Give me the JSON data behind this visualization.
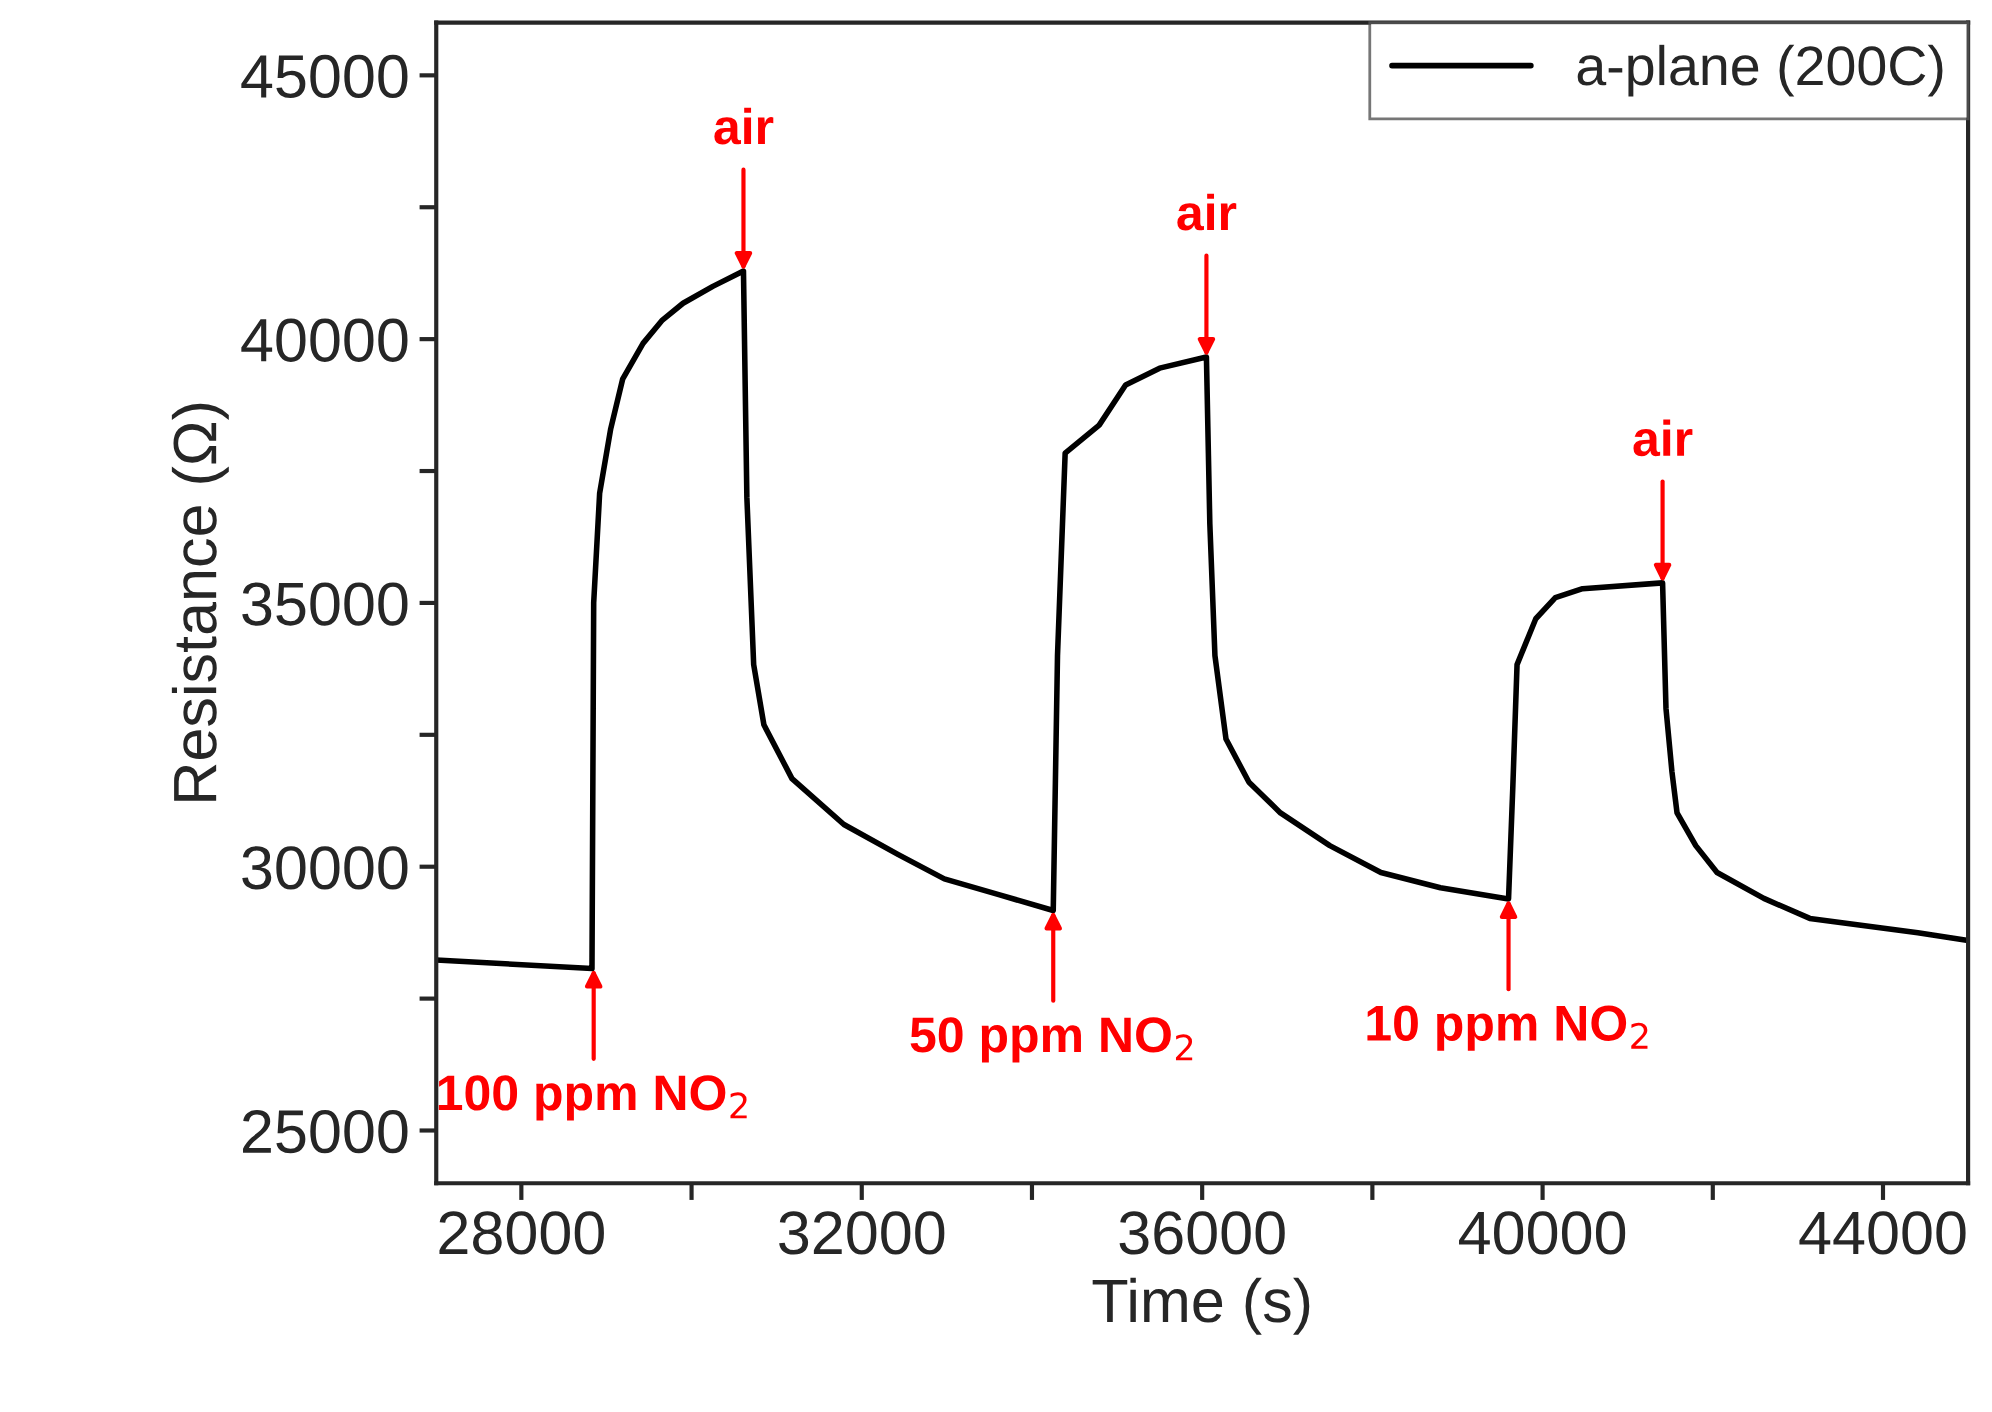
{
  "chart_data": {
    "type": "line",
    "xlabel": "Time (s)",
    "ylabel": "Resistance (Ω)",
    "xlim": [
      27000,
      45000
    ],
    "xticks": [
      28000,
      {
        "value": 30000,
        "label": null
      },
      32000,
      {
        "value": 34000,
        "label": null
      },
      36000,
      {
        "value": 38000,
        "label": null
      },
      40000,
      {
        "value": 42000,
        "label": null
      },
      44000
    ],
    "ylim": [
      24000,
      46000
    ],
    "yticks": [
      25000,
      {
        "value": 27500,
        "label": null
      },
      30000,
      {
        "value": 32500,
        "label": null
      },
      35000,
      {
        "value": 37500,
        "label": null
      },
      40000,
      {
        "value": 42500,
        "label": null
      },
      45000
    ],
    "series": [
      {
        "name": "a-plane (200C)",
        "color": "#000000",
        "x": [
          27000,
          28830,
          28850,
          28920,
          29050,
          29190,
          29430,
          29650,
          29900,
          30250,
          30610,
          30650,
          30730,
          30850,
          31180,
          31790,
          32430,
          32970,
          33610,
          34250,
          34300,
          34390,
          34790,
          35100,
          35500,
          36050,
          36090,
          36150,
          36280,
          36550,
          36920,
          37500,
          38100,
          38800,
          39600,
          39650,
          39700,
          39920,
          40150,
          40470,
          41410,
          41450,
          41520,
          41580,
          41800,
          42050,
          42600,
          43140,
          44410,
          45000
        ],
        "values": [
          28230,
          28070,
          35000,
          37080,
          38300,
          39240,
          39920,
          40350,
          40680,
          41000,
          41290,
          37000,
          33830,
          32690,
          31670,
          30800,
          30230,
          29770,
          29470,
          29170,
          34000,
          37840,
          38370,
          39130,
          39450,
          39660,
          36500,
          34000,
          32420,
          31600,
          31020,
          30400,
          29890,
          29600,
          29390,
          31500,
          33830,
          34700,
          35100,
          35270,
          35380,
          33000,
          31800,
          31020,
          30400,
          29890,
          29400,
          29020,
          28750,
          28600
        ]
      }
    ],
    "annotations": [
      {
        "text": "air",
        "x": 30610,
        "y": 41290
      },
      {
        "text": "air",
        "x": 36050,
        "y": 39660
      },
      {
        "text": "air",
        "x": 41410,
        "y": 35380
      },
      {
        "text": "100 ppm NO$_{2}$",
        "x": 28850,
        "y": 28070
      },
      {
        "text": "50 ppm NO$_{2}$",
        "x": 34250,
        "y": 29170
      },
      {
        "text": "10 ppm NO$_{2}$",
        "x": 39600,
        "y": 29390
      }
    ],
    "legend": "top right",
    "grid": false,
    "line_style": "solid",
    "marker": "none"
  }
}
